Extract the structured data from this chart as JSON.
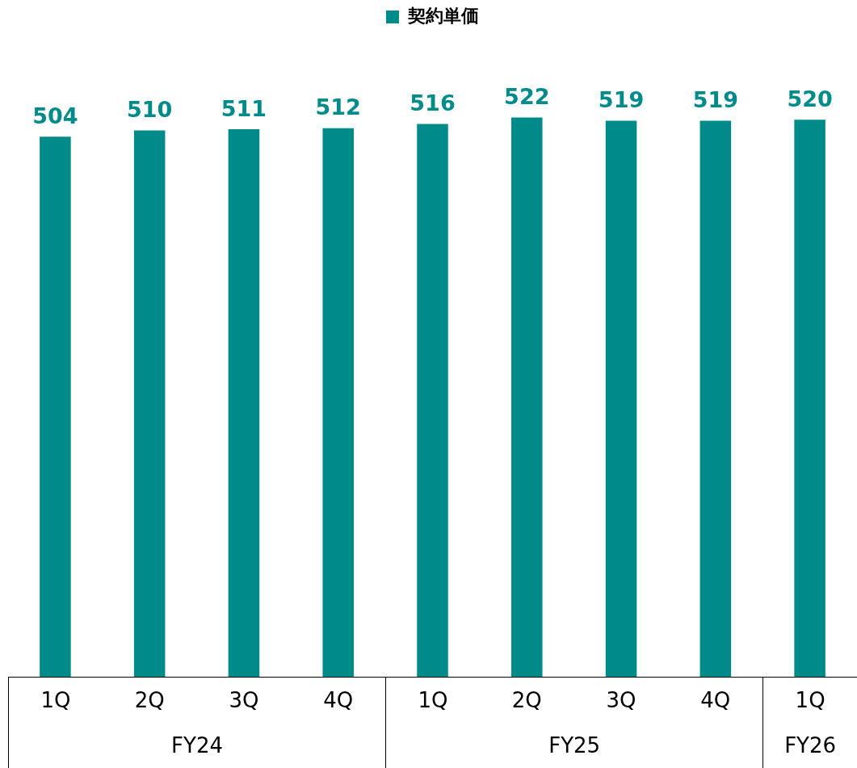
{
  "chart_data": {
    "type": "bar",
    "categories": [
      "1Q",
      "2Q",
      "3Q",
      "4Q",
      "1Q",
      "2Q",
      "3Q",
      "4Q",
      "1Q"
    ],
    "series": [
      {
        "name": "契約単価",
        "color": "#008b8b",
        "values": [
          504,
          510,
          511,
          512,
          516,
          522,
          519,
          519,
          520
        ]
      }
    ],
    "annotations": [
      "FY24",
      "FY25",
      "FY26"
    ],
    "data_labels": true,
    "legend": "top"
  }
}
